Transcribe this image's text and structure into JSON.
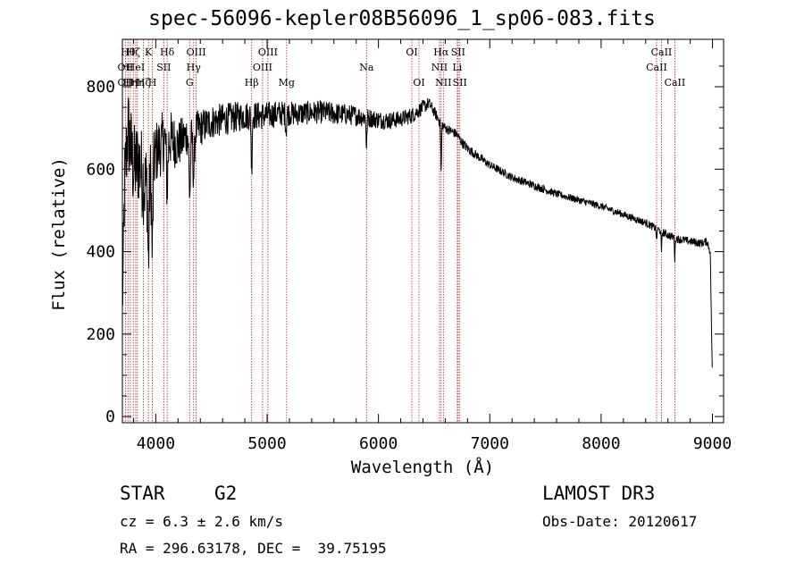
{
  "chart_data": {
    "type": "line",
    "title": "spec-56096-kepler08B56096_1_sp06-083.fits",
    "xlabel": "Wavelength (Å)",
    "ylabel": "Flux (relative)",
    "xlim": [
      3700,
      9100
    ],
    "ylim": [
      -15,
      915
    ],
    "xticks": [
      4000,
      5000,
      6000,
      7000,
      8000,
      9000
    ],
    "yticks": [
      0,
      200,
      400,
      600,
      800
    ],
    "xtick_labels": [
      "4000",
      "5000",
      "6000",
      "7000",
      "8000",
      "9000"
    ],
    "ytick_labels": [
      "0",
      "200",
      "400",
      "600",
      "800"
    ],
    "continuum": {
      "x": [
        3700,
        3720,
        3750,
        3800,
        3850,
        3900,
        3950,
        4000,
        4050,
        4100,
        4200,
        4300,
        4400,
        4500,
        4600,
        4700,
        4800,
        4900,
        5000,
        5100,
        5200,
        5300,
        5400,
        5500,
        5600,
        5700,
        5800,
        5900,
        6000,
        6100,
        6200,
        6300,
        6350,
        6400,
        6450,
        6500,
        6550,
        6600,
        6700,
        6750,
        6800,
        6900,
        7000,
        7100,
        7200,
        7400,
        7600,
        7800,
        8000,
        8200,
        8400,
        8500,
        8600,
        8700,
        8800,
        8900,
        8950,
        8980,
        9000
      ],
      "y": [
        250,
        560,
        700,
        600,
        620,
        560,
        580,
        640,
        660,
        680,
        660,
        690,
        700,
        715,
        720,
        725,
        730,
        730,
        730,
        735,
        735,
        735,
        738,
        738,
        735,
        733,
        730,
        725,
        720,
        718,
        722,
        730,
        740,
        750,
        760,
        740,
        715,
        700,
        685,
        665,
        650,
        630,
        610,
        595,
        580,
        560,
        540,
        525,
        510,
        490,
        470,
        455,
        440,
        430,
        425,
        420,
        425,
        400,
        80
      ],
      "noise": [
        60,
        110,
        110,
        110,
        110,
        110,
        100,
        80,
        75,
        75,
        60,
        50,
        45,
        42,
        40,
        38,
        36,
        35,
        34,
        32,
        30,
        30,
        28,
        28,
        28,
        26,
        25,
        24,
        22,
        22,
        20,
        20,
        18,
        18,
        15,
        14,
        12,
        12,
        12,
        12,
        12,
        11,
        10,
        10,
        10,
        10,
        9,
        9,
        9,
        9,
        9,
        10,
        10,
        10,
        10,
        10,
        10,
        10,
        10
      ]
    },
    "absorption": [
      {
        "x": 3934,
        "depth": 200,
        "w": 8
      },
      {
        "x": 3969,
        "depth": 210,
        "w": 8
      },
      {
        "x": 4102,
        "depth": 120,
        "w": 10
      },
      {
        "x": 4305,
        "depth": 150,
        "w": 10
      },
      {
        "x": 4340,
        "depth": 110,
        "w": 10
      },
      {
        "x": 4861,
        "depth": 140,
        "w": 6
      },
      {
        "x": 5170,
        "depth": 40,
        "w": 6
      },
      {
        "x": 5893,
        "depth": 80,
        "w": 5
      },
      {
        "x": 6563,
        "depth": 120,
        "w": 5
      },
      {
        "x": 8498,
        "depth": 35,
        "w": 4
      },
      {
        "x": 8542,
        "depth": 55,
        "w": 4
      },
      {
        "x": 8662,
        "depth": 55,
        "w": 4
      }
    ],
    "lines": [
      {
        "x": 3727,
        "label": "OII",
        "row": 2
      },
      {
        "x": 3727,
        "label": "OII",
        "row": 3
      },
      {
        "x": 3750,
        "label": "Hθ",
        "row": 1
      },
      {
        "x": 3771,
        "label": "Hη",
        "row": 3
      },
      {
        "x": 3798,
        "label": "Hζ",
        "row": 1
      },
      {
        "x": 3820,
        "label": "HeI",
        "row": 2
      },
      {
        "x": 3835,
        "label": "Hη",
        "row": 3
      },
      {
        "x": 3889,
        "label": "Hζ",
        "row": 3
      },
      {
        "x": 3934,
        "label": "K",
        "row": 1
      },
      {
        "x": 3969,
        "label": "H",
        "row": 3
      },
      {
        "x": 4072,
        "label": "SII",
        "row": 2
      },
      {
        "x": 4102,
        "label": "Hδ",
        "row": 1
      },
      {
        "x": 4304,
        "label": "G",
        "row": 3
      },
      {
        "x": 4340,
        "label": "Hγ",
        "row": 2
      },
      {
        "x": 4363,
        "label": "OIII",
        "row": 1
      },
      {
        "x": 4861,
        "label": "Hβ",
        "row": 3
      },
      {
        "x": 4959,
        "label": "OIII",
        "row": 2
      },
      {
        "x": 5007,
        "label": "OIII",
        "row": 1
      },
      {
        "x": 5175,
        "label": "Mg",
        "row": 3
      },
      {
        "x": 5893,
        "label": "Na",
        "row": 2
      },
      {
        "x": 6300,
        "label": "OI",
        "row": 1
      },
      {
        "x": 6364,
        "label": "OI",
        "row": 3
      },
      {
        "x": 6548,
        "label": "NII",
        "row": 2
      },
      {
        "x": 6563,
        "label": "Hα",
        "row": 1
      },
      {
        "x": 6583,
        "label": "NII",
        "row": 3
      },
      {
        "x": 6708,
        "label": "Li",
        "row": 2
      },
      {
        "x": 6716,
        "label": "SII",
        "row": 1
      },
      {
        "x": 6731,
        "label": "SII",
        "row": 3
      },
      {
        "x": 8498,
        "label": "CaII",
        "row": 2
      },
      {
        "x": 8542,
        "label": "CaII",
        "row": 1
      },
      {
        "x": 8662,
        "label": "CaII",
        "row": 3
      }
    ]
  },
  "info": {
    "object_class": "STAR",
    "subclass": "G2",
    "survey": "LAMOST DR3",
    "cz": "cz = 6.3 ± 2.6 km/s",
    "obs_date": "Obs-Date: 20120617",
    "coords": "RA = 296.63178, DEC =  39.75195"
  },
  "colors": {
    "line_markers": "#b22222",
    "spectrum": "#000000",
    "axes": "#000000"
  }
}
